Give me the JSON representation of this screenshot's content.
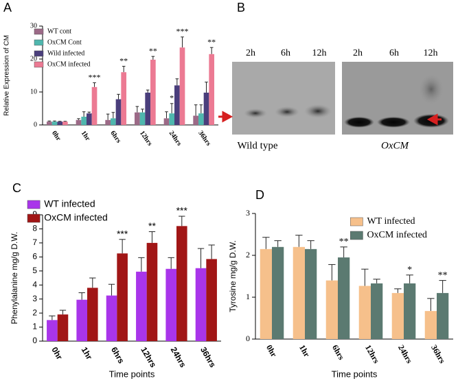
{
  "chart_data": [
    {
      "type": "bar",
      "label": "A",
      "ylabel": "Relative Expression of CM",
      "categories": [
        "0hr",
        "1hr",
        "6hrs",
        "12hrs",
        "24hrs",
        "36hrs"
      ],
      "ylim": [
        0,
        30
      ],
      "yticks": [
        0,
        10,
        20,
        30
      ],
      "legend": "upper left",
      "series": [
        {
          "name": "WT cont",
          "color": "#9c6a87",
          "values": [
            1,
            1.5,
            1.5,
            3.8,
            2,
            2.8
          ],
          "errors": [
            0.2,
            0.4,
            1.8,
            1.8,
            2,
            3.3
          ]
        },
        {
          "name": "OxCM Cont",
          "color": "#4fb7ae",
          "values": [
            1,
            2.5,
            2,
            3.8,
            3.5,
            3.5
          ],
          "errors": [
            0.2,
            1.5,
            1.8,
            1,
            3,
            2.6
          ]
        },
        {
          "name": "Wild infected",
          "color": "#4a3e7c",
          "values": [
            1,
            3.5,
            7.8,
            9.8,
            12,
            9.8
          ],
          "errors": [
            0.1,
            0.4,
            1.5,
            0.8,
            2,
            3.2
          ]
        },
        {
          "name": "OxCM infected",
          "color": "#ec7a93",
          "values": [
            1,
            11.5,
            16,
            19.8,
            23.5,
            21.5
          ],
          "errors": [
            0.1,
            1.3,
            1.8,
            1,
            3.2,
            2
          ]
        }
      ],
      "annotations": [
        {
          "text": "***",
          "x": "1hr",
          "series": "OxCM infected"
        },
        {
          "text": "**",
          "x": "6hrs",
          "series": "OxCM infected"
        },
        {
          "text": "**",
          "x": "12hrs",
          "series": "OxCM infected"
        },
        {
          "text": "*",
          "x": "24hrs",
          "series": "OxCM Cont"
        },
        {
          "text": "***",
          "x": "24hrs",
          "series": "OxCM infected"
        },
        {
          "text": "**",
          "x": "36hrs",
          "series": "OxCM infected"
        }
      ]
    },
    {
      "type": "bar",
      "label": "C",
      "ylabel": "Phenylalanine mg/g D.W.",
      "xlabel": "Time points",
      "categories": [
        "0hr",
        "1hr",
        "6hrs",
        "12hrs",
        "24hrs",
        "36hrs"
      ],
      "ylim": [
        0,
        9
      ],
      "yticks": [
        0,
        1,
        2,
        3,
        4,
        5,
        6,
        7,
        8,
        9
      ],
      "legend": "upper left",
      "series": [
        {
          "name": "WT infected",
          "color": "#a935ea",
          "values": [
            1.5,
            2.95,
            3.25,
            4.95,
            5.15,
            5.2
          ],
          "errors": [
            0.3,
            0.5,
            0.8,
            1.0,
            0.8,
            1.4
          ]
        },
        {
          "name": "OxCM infected",
          "color": "#a11616",
          "values": [
            1.9,
            3.8,
            6.25,
            7.0,
            8.2,
            5.85
          ],
          "errors": [
            0.3,
            0.7,
            1.0,
            0.8,
            0.7,
            1.0
          ]
        }
      ],
      "annotations": [
        {
          "text": "***",
          "x": "6hrs",
          "series": "OxCM infected"
        },
        {
          "text": "**",
          "x": "12hrs",
          "series": "OxCM infected"
        },
        {
          "text": "***",
          "x": "24hrs",
          "series": "OxCM infected"
        }
      ]
    },
    {
      "type": "bar",
      "label": "D",
      "ylabel": "Tyrosine mg/g D.W.",
      "xlabel": "Time points",
      "categories": [
        "0hr",
        "1hr",
        "6hrs",
        "12hrs",
        "24hrs",
        "36hrs"
      ],
      "ylim": [
        0,
        3
      ],
      "yticks": [
        0,
        1,
        2,
        3
      ],
      "legend": "upper right",
      "series": [
        {
          "name": "WT infected",
          "color": "#f6c08b",
          "values": [
            2.15,
            2.2,
            1.4,
            1.27,
            1.1,
            0.67
          ],
          "errors": [
            0.28,
            0.28,
            0.38,
            0.4,
            0.1,
            0.3
          ]
        },
        {
          "name": "OxCM infected",
          "color": "#5b7a71",
          "values": [
            2.2,
            2.15,
            1.95,
            1.33,
            1.33,
            1.1
          ],
          "errors": [
            0.15,
            0.2,
            0.25,
            0.1,
            0.2,
            0.3
          ]
        }
      ],
      "annotations": [
        {
          "text": "**",
          "x": "6hrs",
          "series": "OxCM infected"
        },
        {
          "text": "*",
          "x": "24hrs",
          "series": "OxCM infected"
        },
        {
          "text": "**",
          "x": "36hrs",
          "series": "OxCM infected"
        }
      ]
    }
  ],
  "blot": {
    "label": "B",
    "lanes_left": [
      "2h",
      "6h",
      "12h"
    ],
    "lanes_right": [
      "2h",
      "6h",
      "12h"
    ],
    "caption_left": "Wild type",
    "caption_right": "OxCM"
  }
}
